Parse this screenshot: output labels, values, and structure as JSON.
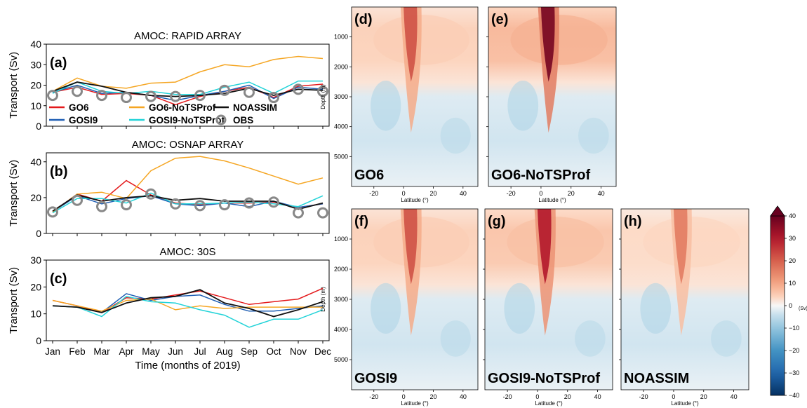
{
  "chart_data": [
    {
      "type": "line",
      "panel_label": "(a)",
      "title": "AMOC: RAPID ARRAY",
      "ylabel": "Transport (Sv)",
      "ylim": [
        0,
        40
      ],
      "yticks": [
        0,
        10,
        20,
        30,
        40
      ],
      "categories": [
        "Jan",
        "Feb",
        "Mar",
        "Apr",
        "May",
        "Jun",
        "Jul",
        "Aug",
        "Sep",
        "Oct",
        "Nov",
        "Dec"
      ],
      "series": [
        {
          "name": "GO6",
          "color": "#e41a1c",
          "values": [
            16.5,
            19,
            15.5,
            16,
            15,
            10.5,
            14.5,
            17,
            19,
            14,
            19.5,
            20.5
          ]
        },
        {
          "name": "GOSI9",
          "color": "#1f5fb4",
          "values": [
            16.5,
            20,
            16,
            16.5,
            15,
            12.5,
            15,
            17,
            20,
            13.5,
            19,
            18
          ]
        },
        {
          "name": "GO6-NoTSProf",
          "color": "#f5a623",
          "values": [
            17,
            23.5,
            19.5,
            18.5,
            21,
            21.5,
            26.5,
            30,
            29,
            32.5,
            34,
            33
          ]
        },
        {
          "name": "GOSI9-NoTSProf",
          "color": "#22d3d8",
          "values": [
            16,
            21.5,
            17,
            16,
            17,
            15.5,
            15.5,
            19,
            21.5,
            16,
            22,
            22
          ]
        },
        {
          "name": "NOASSIM",
          "color": "#111111",
          "values": [
            17,
            21.5,
            19.5,
            16.5,
            15,
            14.5,
            15,
            16,
            18.5,
            15,
            18,
            17.5
          ]
        },
        {
          "name": "OBS",
          "color": "#888888",
          "marker": "circle",
          "values": [
            15,
            17,
            15,
            14,
            14.5,
            14.5,
            15,
            17.5,
            16.5,
            14,
            18,
            17
          ]
        }
      ],
      "legend": {
        "placement": "lower-left",
        "entries": [
          {
            "label": "GO6",
            "color": "#e41a1c",
            "kind": "line"
          },
          {
            "label": "GO6-NoTSProf",
            "color": "#f5a623",
            "kind": "line"
          },
          {
            "label": "NOASSIM",
            "color": "#111111",
            "kind": "line"
          },
          {
            "label": "GOSI9",
            "color": "#1f5fb4",
            "kind": "line"
          },
          {
            "label": "GOSI9-NoTSProf",
            "color": "#22d3d8",
            "kind": "line"
          },
          {
            "label": "OBS",
            "color": "#888888",
            "kind": "circle"
          }
        ]
      }
    },
    {
      "type": "line",
      "panel_label": "(b)",
      "title": "AMOC: OSNAP ARRAY",
      "ylabel": "Transport (Sv)",
      "ylim": [
        0,
        45
      ],
      "yticks": [
        0,
        20,
        40
      ],
      "categories": [
        "Jan",
        "Feb",
        "Mar",
        "Apr",
        "May",
        "Jun",
        "Jul",
        "Aug",
        "Sep",
        "Oct",
        "Nov",
        "Dec"
      ],
      "series": [
        {
          "name": "GO6",
          "color": "#e41a1c",
          "values": [
            12,
            22,
            18,
            29.5,
            21.5,
            17,
            16,
            17,
            17,
            17.5,
            14.5,
            16.5
          ]
        },
        {
          "name": "GOSI9",
          "color": "#1f5fb4",
          "values": [
            12,
            21,
            16.5,
            19.5,
            21,
            16.5,
            15.5,
            17,
            15,
            18,
            14.5,
            16.5
          ]
        },
        {
          "name": "GO6-NoTSProf",
          "color": "#f5a623",
          "values": [
            12,
            22,
            23,
            19.5,
            35,
            42,
            43,
            40.5,
            36.5,
            32,
            27.5,
            31
          ]
        },
        {
          "name": "GOSI9-NoTSProf",
          "color": "#22d3d8",
          "values": [
            11.5,
            19.5,
            19.5,
            17,
            22.5,
            16.5,
            16.5,
            17,
            17.5,
            16.5,
            15,
            21
          ]
        },
        {
          "name": "NOASSIM",
          "color": "#111111",
          "values": [
            12.5,
            21.5,
            18,
            20,
            21,
            18.5,
            19.5,
            18,
            18,
            18,
            13.5,
            17
          ]
        },
        {
          "name": "OBS",
          "color": "#888888",
          "marker": "circle",
          "values": [
            12,
            18.5,
            15,
            16,
            22,
            16.5,
            15.5,
            16,
            17,
            17.5,
            11.5,
            11.5
          ]
        }
      ]
    },
    {
      "type": "line",
      "panel_label": "(c)",
      "title": "AMOC: 30S",
      "ylabel": "Transport (Sv)",
      "xlabel": "Time (months of 2019)",
      "ylim": [
        0,
        30
      ],
      "yticks": [
        0,
        10,
        20,
        30
      ],
      "categories": [
        "Jan",
        "Feb",
        "Mar",
        "Apr",
        "May",
        "Jun",
        "Jul",
        "Aug",
        "Sep",
        "Oct",
        "Nov",
        "Dec"
      ],
      "series": [
        {
          "name": "GO6",
          "color": "#e41a1c",
          "values": [
            15,
            13,
            10.5,
            16,
            15.5,
            17,
            18.5,
            16,
            13.5,
            14.5,
            15.5,
            19.5
          ]
        },
        {
          "name": "GOSI9",
          "color": "#1f5fb4",
          "values": [
            13,
            12.5,
            10.5,
            17.5,
            15,
            16.5,
            17,
            13.5,
            11,
            11,
            12,
            13
          ]
        },
        {
          "name": "GO6-NoTSProf",
          "color": "#f5a623",
          "values": [
            15,
            13,
            11,
            15,
            15.5,
            11.5,
            13,
            12,
            12.5,
            12.5,
            12.5,
            12.5
          ]
        },
        {
          "name": "GOSI9-NoTSProf",
          "color": "#22d3d8",
          "values": [
            13,
            12.5,
            9,
            16.5,
            14.5,
            14,
            11.5,
            9.5,
            5,
            8,
            8,
            11.5
          ]
        },
        {
          "name": "NOASSIM",
          "color": "#111111",
          "values": [
            13,
            12.5,
            10.5,
            14,
            16,
            16.5,
            19,
            14,
            12,
            9,
            11.5,
            14.5
          ]
        }
      ]
    },
    {
      "type": "heatmap",
      "panels": [
        {
          "label": "(d)",
          "name": "GO6",
          "max": 22
        },
        {
          "label": "(e)",
          "name": "GO6-NoTSProf",
          "max": 38
        },
        {
          "label": "(f)",
          "name": "GOSI9",
          "max": 22
        },
        {
          "label": "(g)",
          "name": "GOSI9-NoTSProf",
          "max": 30
        },
        {
          "label": "(h)",
          "name": "NOASSIM",
          "max": 16
        }
      ],
      "xlabel": "Latitude (°)",
      "ylabel": "Depth (m)",
      "xlim": [
        -35,
        50
      ],
      "xticks": [
        -20,
        0,
        20,
        40
      ],
      "ylim": [
        0,
        6000
      ],
      "yticks": [
        1000,
        2000,
        3000,
        4000,
        5000
      ],
      "colorbar": {
        "label": "(Sv)",
        "range": [
          -40,
          40
        ],
        "ticks": [
          40,
          30,
          20,
          10,
          0,
          -10,
          -20,
          -30,
          -40
        ],
        "colormap": "RdBu_r"
      }
    }
  ]
}
